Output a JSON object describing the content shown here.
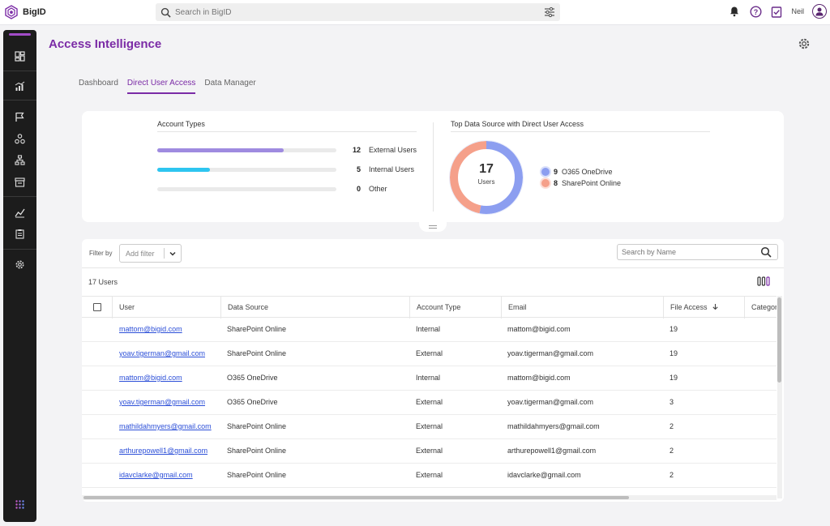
{
  "app": {
    "name": "BigID"
  },
  "search": {
    "placeholder": "Search in BigID"
  },
  "user": {
    "name": "Neil"
  },
  "page": {
    "title": "Access Intelligence"
  },
  "tabs": [
    {
      "label": "Dashboard",
      "active": false
    },
    {
      "label": "Direct User Access",
      "active": true
    },
    {
      "label": "Data Manager",
      "active": false
    }
  ],
  "account_types": {
    "title": "Account Types",
    "items": [
      {
        "label": "External Users",
        "count": "12",
        "fraction": 0.706,
        "color": "#9f8be0"
      },
      {
        "label": "Internal Users",
        "count": "5",
        "fraction": 0.294,
        "color": "#2ec5f0"
      },
      {
        "label": "Other",
        "count": "0",
        "fraction": 0,
        "color": "#cccccc"
      }
    ]
  },
  "top_sources": {
    "title": "Top Data Source with Direct User Access",
    "total": "17",
    "total_label": "Users",
    "items": [
      {
        "label": "O365 OneDrive",
        "count": "9",
        "value": 9,
        "color": "#8c9ef0"
      },
      {
        "label": "SharePoint Online",
        "count": "8",
        "value": 8,
        "color": "#f5a08a"
      }
    ]
  },
  "table": {
    "filter_label": "Filter by",
    "add_filter_placeholder": "Add filter",
    "search_placeholder": "Search by Name",
    "count_label": "17 Users",
    "columns": [
      "User",
      "Data Source",
      "Account Type",
      "Email",
      "File Access",
      "Categor"
    ],
    "rows": [
      {
        "user": "mattom@bigid.com",
        "source": "SharePoint Online",
        "type": "Internal",
        "email": "mattom@bigid.com",
        "access": "19"
      },
      {
        "user": "yoav.tigerman@gmail.com",
        "source": "SharePoint Online",
        "type": "External",
        "email": "yoav.tigerman@gmail.com",
        "access": "19"
      },
      {
        "user": "mattom@bigid.com",
        "source": "O365 OneDrive",
        "type": "Internal",
        "email": "mattom@bigid.com",
        "access": "19"
      },
      {
        "user": "yoav.tigerman@gmail.com",
        "source": "O365 OneDrive",
        "type": "External",
        "email": "yoav.tigerman@gmail.com",
        "access": "3"
      },
      {
        "user": "mathildahmyers@gmail.com",
        "source": "SharePoint Online",
        "type": "External",
        "email": "mathildahmyers@gmail.com",
        "access": "2"
      },
      {
        "user": "arthurepowell1@gmail.com",
        "source": "SharePoint Online",
        "type": "External",
        "email": "arthurepowell1@gmail.com",
        "access": "2"
      },
      {
        "user": "idavclarke@gmail.com",
        "source": "SharePoint Online",
        "type": "External",
        "email": "idavclarke@gmail.com",
        "access": "2"
      }
    ]
  },
  "icons": {
    "sidebar": [
      "dashboard-icon",
      "reports-icon",
      "flag-icon",
      "cluster-icon",
      "hierarchy-icon",
      "inventory-icon",
      "analytics-icon",
      "clipboard-icon",
      "settings-icon",
      "apps-grid-icon"
    ],
    "top": [
      "bell-icon",
      "help-icon",
      "tasks-icon",
      "avatar-icon"
    ]
  },
  "colors": {
    "accent": "#7b2ba6",
    "link": "#2c4fd8"
  }
}
